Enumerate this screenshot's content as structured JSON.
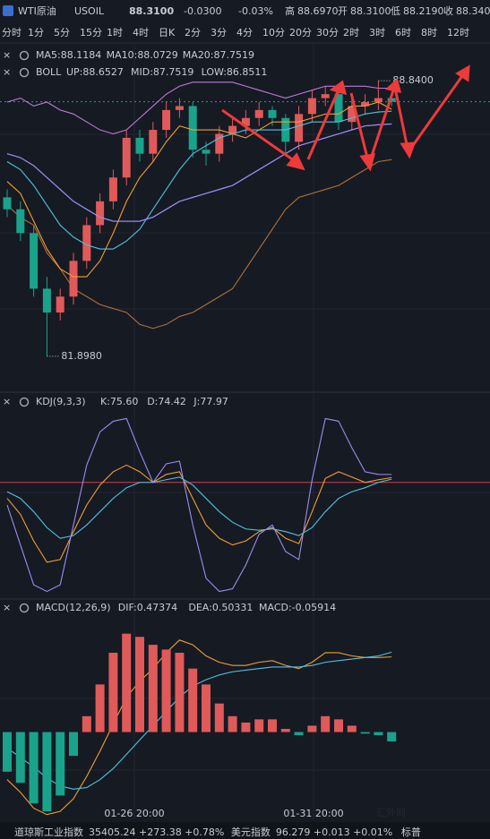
{
  "header": {
    "name": "WTI原油",
    "symbol": "USOIL",
    "price": "88.3100",
    "change": "-0.0300",
    "pct": "-0.03%",
    "stats": [
      {
        "label": "高",
        "value": "88.6970"
      },
      {
        "label": "开",
        "value": "88.3100"
      },
      {
        "label": "低",
        "value": "88.2190"
      },
      {
        "label": "收",
        "value": "88.340"
      }
    ]
  },
  "timeframes": [
    "分时",
    "1分",
    "5分",
    "15分",
    "1时",
    "4时",
    "日K",
    "2分",
    "3分",
    "4分",
    "10分",
    "20分",
    "30分",
    "2时",
    "3时",
    "6时",
    "8时",
    "12时"
  ],
  "active_timeframe": "4时",
  "ticker": [
    {
      "name": "道琼斯工业指数",
      "text": "35405.24 +273.38 +0.78%"
    },
    {
      "name": "美元指数",
      "text": "96.279 +0.013 +0.01%"
    },
    {
      "name": "标普",
      "text": ""
    }
  ],
  "watermark": "汇外网",
  "chart_data": [
    {
      "type": "candlestick",
      "ylim": [
        81.06,
        89.18
      ],
      "up_color": "#e05a5a",
      "down_color": "#1aa38b",
      "annotations": [
        {
          "text": "88.8400",
          "value": 88.84,
          "index": 28
        },
        {
          "text": "81.8980",
          "value": 81.898,
          "index": 3
        }
      ],
      "open": [
        85.9,
        85.6,
        85.0,
        83.6,
        83.0,
        83.4,
        84.3,
        85.2,
        85.8,
        86.4,
        87.4,
        87.0,
        87.6,
        88.1,
        88.2,
        87.1,
        87.0,
        87.5,
        87.7,
        87.9,
        88.1,
        87.9,
        87.3,
        88.0,
        88.4,
        88.5,
        87.8,
        88.2,
        88.3,
        88.4
      ],
      "high": [
        86.1,
        85.8,
        85.2,
        83.9,
        83.6,
        84.5,
        85.4,
        86.0,
        86.6,
        87.6,
        87.6,
        87.8,
        88.3,
        88.4,
        88.3,
        87.3,
        87.7,
        87.9,
        88.1,
        88.3,
        88.2,
        88.0,
        88.2,
        88.6,
        88.7,
        88.6,
        88.4,
        88.5,
        88.84,
        88.5
      ],
      "low": [
        85.4,
        84.8,
        83.4,
        81.898,
        82.8,
        83.2,
        84.1,
        85.0,
        85.6,
        86.2,
        86.8,
        86.8,
        87.4,
        87.9,
        86.9,
        86.7,
        86.8,
        87.3,
        87.5,
        87.7,
        87.7,
        87.0,
        87.1,
        87.8,
        88.2,
        87.6,
        87.6,
        88.0,
        88.1,
        88.2
      ],
      "close": [
        85.6,
        85.0,
        83.6,
        83.0,
        83.4,
        84.3,
        85.2,
        85.8,
        86.4,
        87.4,
        87.0,
        87.6,
        88.1,
        88.2,
        87.1,
        87.0,
        87.5,
        87.7,
        87.9,
        88.1,
        87.9,
        87.3,
        88.0,
        88.4,
        88.5,
        87.8,
        88.2,
        88.3,
        88.4,
        88.31
      ],
      "series": [
        {
          "name": "MA5:88.1184",
          "color": "#f0a030",
          "values": [
            86.3,
            86.0,
            85.3,
            84.6,
            84.1,
            83.9,
            83.9,
            84.3,
            85.0,
            85.8,
            86.4,
            86.8,
            87.3,
            87.7,
            87.6,
            87.6,
            87.6,
            87.5,
            87.4,
            87.6,
            87.8,
            87.8,
            87.8,
            87.9,
            88.0,
            88.0,
            88.2,
            88.2,
            88.3,
            88.12
          ]
        },
        {
          "name": "MA10:88.0729",
          "color": "#4fc3e0",
          "values": [
            86.8,
            86.6,
            86.2,
            85.7,
            85.2,
            84.9,
            84.7,
            84.6,
            84.6,
            84.8,
            85.1,
            85.6,
            86.1,
            86.6,
            87.0,
            87.2,
            87.4,
            87.5,
            87.6,
            87.6,
            87.6,
            87.6,
            87.7,
            87.8,
            87.8,
            87.8,
            87.9,
            88.0,
            88.05,
            88.07
          ]
        },
        {
          "name": "MA20:87.7519",
          "color": "#9d8cf0",
          "values": [
            87.0,
            86.9,
            86.7,
            86.4,
            86.1,
            85.8,
            85.6,
            85.4,
            85.3,
            85.3,
            85.3,
            85.4,
            85.6,
            85.8,
            85.9,
            86.0,
            86.1,
            86.2,
            86.4,
            86.6,
            86.8,
            87.0,
            87.2,
            87.3,
            87.4,
            87.5,
            87.6,
            87.7,
            87.73,
            87.75
          ]
        }
      ],
      "boll": {
        "title": "BOLL",
        "series": [
          {
            "name": "UP:88.6527",
            "color": "#c07ad8",
            "values": [
              88.3,
              88.4,
              88.2,
              88.3,
              88.1,
              88.0,
              87.8,
              87.6,
              87.5,
              87.6,
              87.9,
              88.2,
              88.5,
              88.7,
              88.8,
              88.8,
              88.8,
              88.8,
              88.7,
              88.6,
              88.5,
              88.4,
              88.5,
              88.6,
              88.7,
              88.7,
              88.7,
              88.7,
              88.65,
              88.65
            ]
          },
          {
            "name": "MID:87.7519",
            "color": "#8a8af5",
            "values": [
              87.0,
              86.9,
              86.7,
              86.4,
              86.1,
              85.8,
              85.6,
              85.4,
              85.3,
              85.3,
              85.3,
              85.4,
              85.6,
              85.8,
              85.9,
              86.0,
              86.1,
              86.2,
              86.4,
              86.6,
              86.8,
              87.0,
              87.2,
              87.3,
              87.4,
              87.5,
              87.6,
              87.7,
              87.73,
              87.75
            ]
          },
          {
            "name": "LOW:86.8511",
            "color": "#b0703a",
            "values": [
              85.7,
              85.4,
              85.2,
              84.5,
              84.1,
              83.6,
              83.4,
              83.2,
              83.1,
              83.0,
              82.7,
              82.6,
              82.7,
              82.9,
              83.0,
              83.2,
              83.4,
              83.6,
              84.1,
              84.6,
              85.1,
              85.6,
              85.9,
              86.0,
              86.1,
              86.2,
              86.4,
              86.6,
              86.8,
              86.85
            ]
          }
        ]
      }
    },
    {
      "type": "line",
      "title": "KDJ(9,3,3)",
      "ylim": [
        -15,
        125
      ],
      "ref_line": 72,
      "ref_color": "#d04050",
      "series": [
        {
          "name": "K:75.60",
          "color": "#f0a030",
          "values": [
            60,
            48,
            28,
            12,
            14,
            35,
            55,
            70,
            80,
            85,
            80,
            72,
            78,
            80,
            60,
            40,
            30,
            25,
            28,
            35,
            38,
            30,
            26,
            50,
            75,
            80,
            76,
            72,
            74,
            75.6
          ]
        },
        {
          "name": "D:74.42",
          "color": "#4fc3e0",
          "values": [
            65,
            60,
            50,
            38,
            30,
            32,
            40,
            50,
            60,
            68,
            72,
            72,
            74,
            76,
            70,
            60,
            50,
            42,
            37,
            36,
            37,
            35,
            32,
            38,
            50,
            60,
            65,
            68,
            72,
            74.42
          ]
        },
        {
          "name": "J:77.97",
          "color": "#9d8cf0",
          "values": [
            55,
            25,
            -5,
            -10,
            -5,
            40,
            85,
            110,
            118,
            120,
            95,
            72,
            86,
            88,
            40,
            0,
            -10,
            -8,
            10,
            33,
            40,
            20,
            14,
            74,
            120,
            118,
            98,
            80,
            78,
            77.97
          ]
        }
      ]
    },
    {
      "type": "macd",
      "title": "MACD(12,26,9)",
      "ylim": [
        -0.55,
        0.72
      ],
      "up_color": "#e05a5a",
      "down_color": "#1aa38b",
      "x_labels": [
        "01-26 20:00",
        "01-31 20:00"
      ],
      "series": [
        {
          "name": "DIF:0.47374",
          "color": "#f0a030",
          "values": [
            -0.3,
            -0.38,
            -0.48,
            -0.52,
            -0.5,
            -0.42,
            -0.28,
            -0.12,
            0.05,
            0.22,
            0.32,
            0.4,
            0.5,
            0.58,
            0.55,
            0.48,
            0.44,
            0.42,
            0.42,
            0.44,
            0.45,
            0.42,
            0.4,
            0.44,
            0.5,
            0.5,
            0.48,
            0.47,
            0.47,
            0.47374
          ]
        },
        {
          "name": "DEA:0.50331",
          "color": "#4fc3e0",
          "values": [
            -0.1,
            -0.16,
            -0.22,
            -0.29,
            -0.34,
            -0.36,
            -0.35,
            -0.3,
            -0.23,
            -0.14,
            -0.05,
            0.04,
            0.13,
            0.22,
            0.29,
            0.33,
            0.36,
            0.38,
            0.39,
            0.4,
            0.41,
            0.41,
            0.41,
            0.42,
            0.44,
            0.45,
            0.46,
            0.47,
            0.48,
            0.50331
          ]
        },
        {
          "name": "MACD:-0.05914",
          "color": "#c07ad8",
          "values": [
            -0.25,
            -0.32,
            -0.45,
            -0.5,
            -0.4,
            -0.15,
            0.1,
            0.3,
            0.5,
            0.62,
            0.6,
            0.55,
            0.52,
            0.5,
            0.4,
            0.3,
            0.18,
            0.1,
            0.06,
            0.08,
            0.08,
            0.02,
            -0.02,
            0.04,
            0.1,
            0.08,
            0.04,
            -0.01,
            -0.02,
            -0.05914
          ],
          "bars": true
        }
      ]
    }
  ]
}
